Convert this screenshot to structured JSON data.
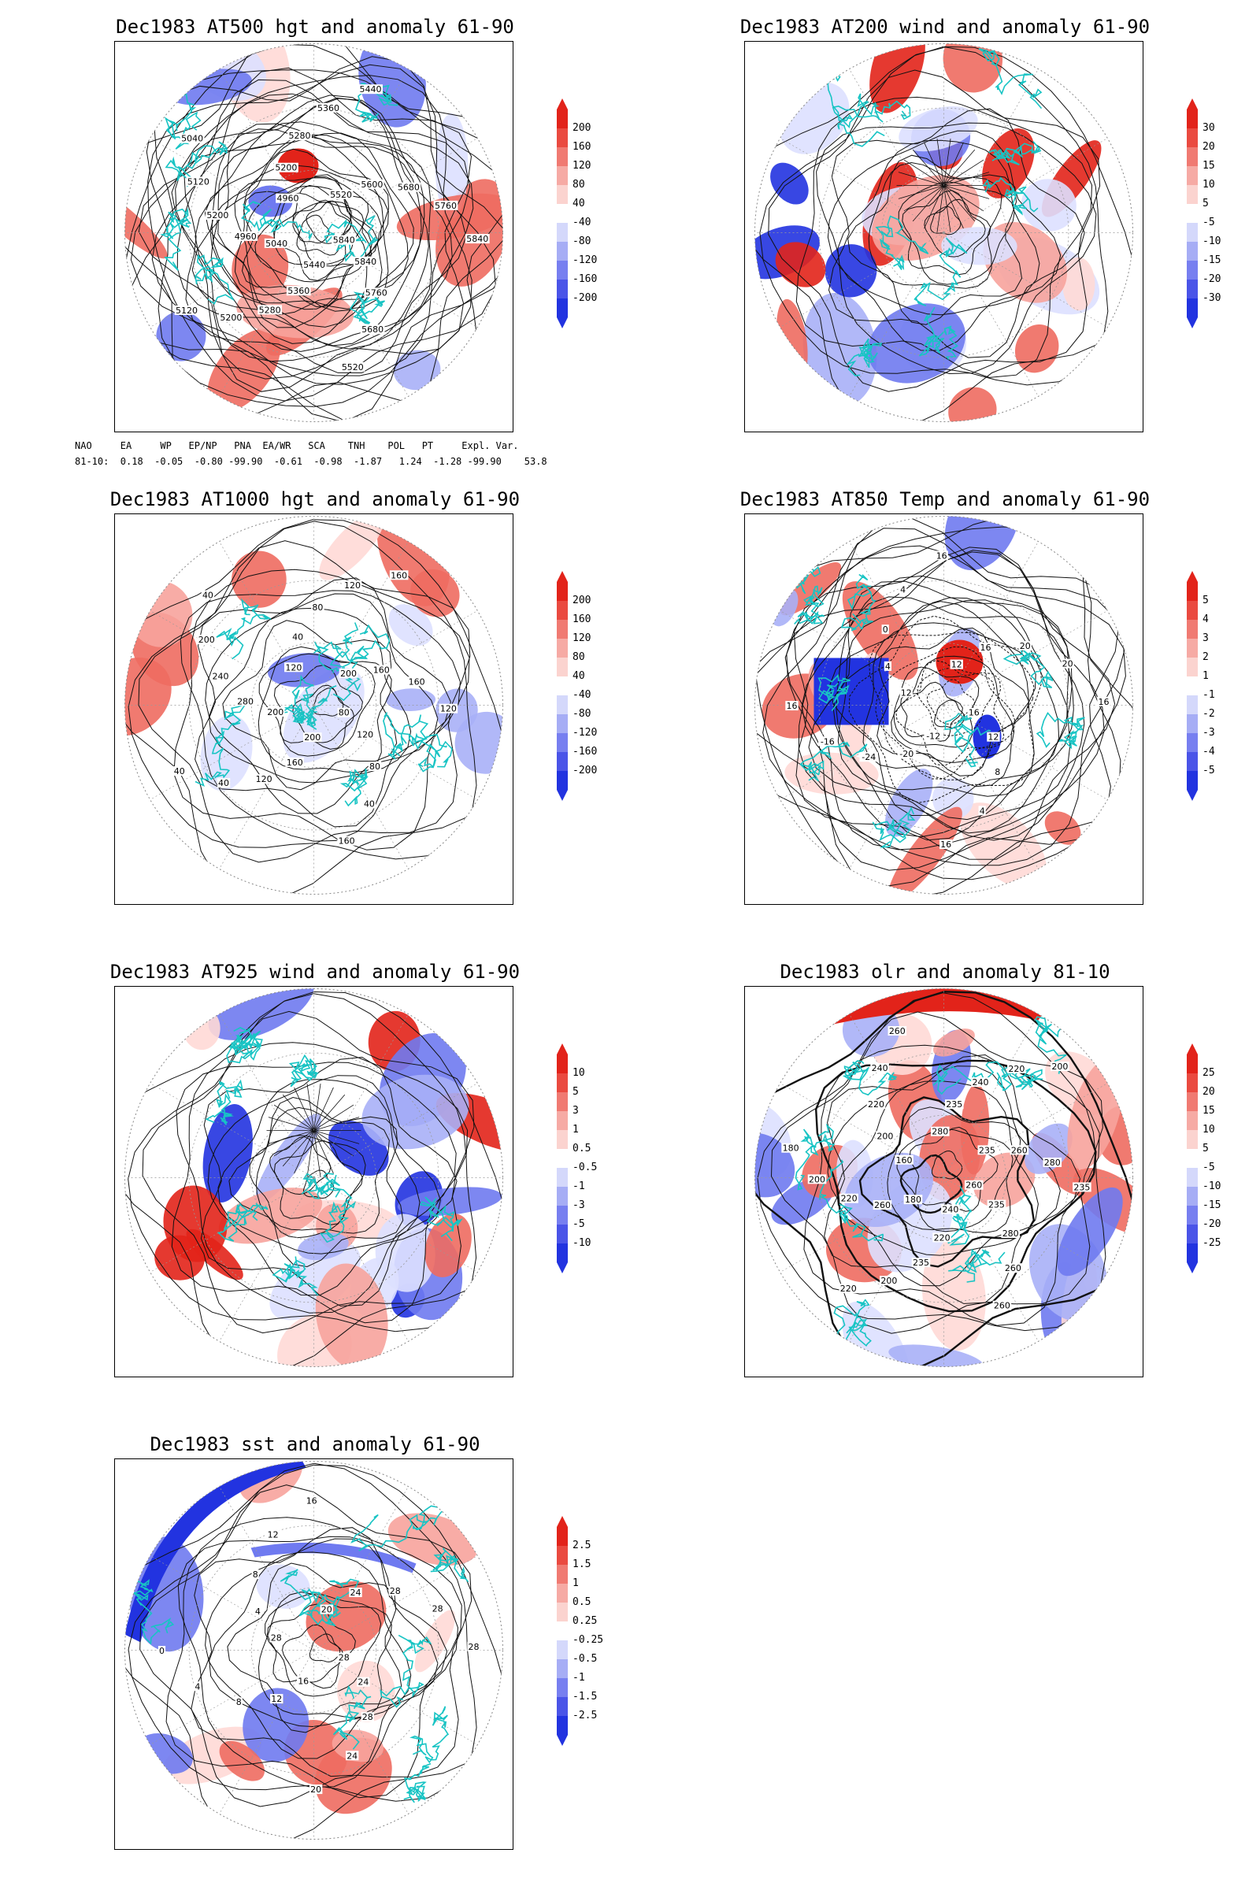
{
  "panels": [
    {
      "id": "at500",
      "title": "Dec1983 AT500 hgt and anomaly 61-90",
      "kind": "height",
      "contour_labels": [
        "5840",
        "5840",
        "5760",
        "5680",
        "5520",
        "5440",
        "5360",
        "5280",
        "5200",
        "5120",
        "5040",
        "4960",
        "5200",
        "5120",
        "5040",
        "4960",
        "5200",
        "5280",
        "5360",
        "5440",
        "5520",
        "5600",
        "5680",
        "5760",
        "5840"
      ],
      "colorbar": [
        "200",
        "160",
        "120",
        "80",
        "40",
        "-40",
        "-80",
        "-120",
        "-160",
        "-200"
      ]
    },
    {
      "id": "at200",
      "title": "Dec1983 AT200 wind and anomaly 61-90",
      "kind": "wind",
      "contour_labels": [],
      "colorbar": [
        "30",
        "20",
        "15",
        "10",
        "5",
        "-5",
        "-10",
        "-15",
        "-20",
        "-30"
      ]
    },
    {
      "id": "at1000",
      "title": "Dec1983 AT1000 hgt and anomaly 61-90",
      "kind": "height",
      "contour_labels": [
        "80",
        "120",
        "80",
        "40",
        "160",
        "200",
        "160",
        "120",
        "40",
        "40",
        "200",
        "280",
        "240",
        "200",
        "40",
        "120",
        "40",
        "80",
        "120",
        "160",
        "200",
        "160",
        "160",
        "120"
      ],
      "colorbar": [
        "200",
        "160",
        "120",
        "80",
        "40",
        "-40",
        "-80",
        "-120",
        "-160",
        "-200"
      ]
    },
    {
      "id": "at850",
      "title": "Dec1983 AT850 Temp and anomaly 61-90",
      "kind": "temp",
      "contour_labels": [
        "16",
        "12",
        "8",
        "4",
        "16",
        "-12",
        "-20",
        "-24",
        "-16",
        "16",
        "12",
        "4",
        "0",
        "4",
        "16",
        "12",
        "16",
        "20",
        "20",
        "16"
      ],
      "colorbar": [
        "5",
        "4",
        "3",
        "2",
        "1",
        "-1",
        "-2",
        "-3",
        "-4",
        "-5"
      ]
    },
    {
      "id": "at925",
      "title": "Dec1983 AT925 wind and anomaly 61-90",
      "kind": "wind",
      "contour_labels": [],
      "colorbar": [
        "10",
        "5",
        "3",
        "1",
        "0.5",
        "-0.5",
        "-1",
        "-3",
        "-5",
        "-10"
      ]
    },
    {
      "id": "olr",
      "title": "Dec1983 olr and anomaly 81-10",
      "kind": "olr",
      "contour_labels": [
        "260",
        "235",
        "280",
        "260",
        "260",
        "240",
        "220",
        "235",
        "200",
        "220",
        "180",
        "260",
        "220",
        "200",
        "180",
        "160",
        "200",
        "220",
        "240",
        "260",
        "280",
        "235",
        "240",
        "220",
        "200",
        "235",
        "260",
        "280",
        "235"
      ],
      "colorbar": [
        "25",
        "20",
        "15",
        "10",
        "5",
        "-5",
        "-10",
        "-15",
        "-20",
        "-25"
      ]
    },
    {
      "id": "sst",
      "title": "Dec1983 sst and anomaly 61-90",
      "kind": "sst",
      "contour_labels": [
        "28",
        "24",
        "28",
        "24",
        "20",
        "16",
        "12",
        "8",
        "4",
        "0",
        "28",
        "4",
        "8",
        "12",
        "16",
        "20",
        "24",
        "28",
        "28",
        "28"
      ],
      "colorbar": [
        "2.5",
        "1.5",
        "1",
        "0.5",
        "0.25",
        "-0.25",
        "-0.5",
        "-1",
        "-1.5",
        "-2.5"
      ]
    }
  ],
  "teleconnection": {
    "header": "NAO     EA     WP   EP/NP   PNA  EA/WR   SCA    TNH    POL   PT     Expl. Var.",
    "values": "81-10:  0.18  -0.05  -0.80 -99.90  -0.61  -0.98  -1.87   1.24  -1.28 -99.90    53.8"
  },
  "colors": {
    "pos_dark": "#e2231a",
    "neg_dark": "#2233e0",
    "coast": "#18c4c4",
    "contour": "#111111"
  }
}
